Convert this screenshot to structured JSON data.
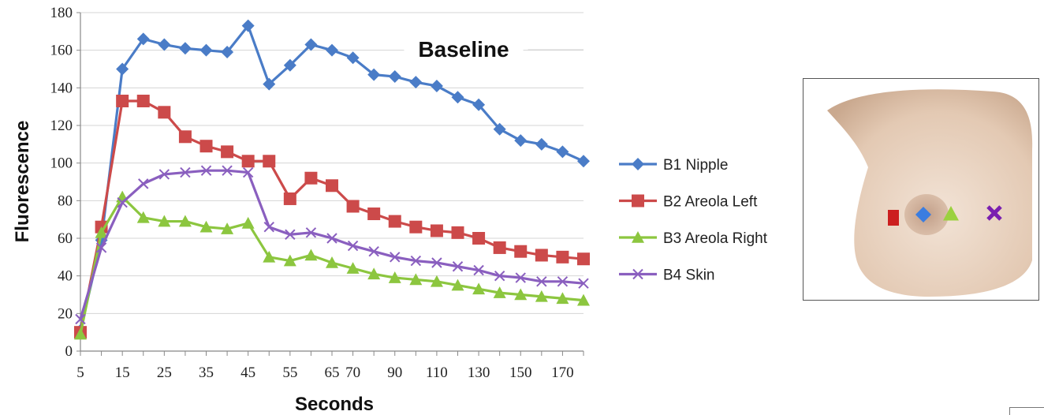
{
  "chart_data": {
    "type": "line",
    "title": "Baseline",
    "xlabel": "Seconds",
    "ylabel": "Fluorescence",
    "ylim": [
      0,
      180
    ],
    "yticks": [
      0,
      20,
      40,
      60,
      80,
      100,
      120,
      140,
      160,
      180
    ],
    "x": [
      5,
      10,
      15,
      20,
      25,
      30,
      35,
      40,
      45,
      50,
      55,
      60,
      65,
      70,
      80,
      90,
      100,
      110,
      120,
      130,
      140,
      150,
      160,
      170,
      180
    ],
    "xtick_labels": [
      "5",
      "15",
      "25",
      "35",
      "45",
      "55",
      "65",
      "70",
      "90",
      "110",
      "130",
      "150",
      "170"
    ],
    "xtick_label_index": [
      0,
      2,
      4,
      6,
      8,
      10,
      12,
      13,
      15,
      17,
      19,
      21,
      23
    ],
    "grid": true,
    "legend_position": "right",
    "series": [
      {
        "name": "B1 Nipple",
        "color": "#4a7cc7",
        "marker": "diamond",
        "values": [
          11,
          59,
          150,
          166,
          163,
          161,
          160,
          159,
          173,
          142,
          152,
          163,
          160,
          156,
          147,
          146,
          143,
          141,
          135,
          131,
          118,
          112,
          110,
          106,
          101
        ]
      },
      {
        "name": "B2 Areola Left",
        "color": "#cc4a4a",
        "marker": "square",
        "values": [
          10,
          66,
          133,
          133,
          127,
          114,
          109,
          106,
          101,
          101,
          81,
          92,
          88,
          77,
          73,
          69,
          66,
          64,
          63,
          60,
          55,
          53,
          51,
          50,
          49
        ]
      },
      {
        "name": "B3 Areola Right",
        "color": "#8cc63f",
        "marker": "triangle",
        "values": [
          9,
          63,
          82,
          71,
          69,
          69,
          66,
          65,
          68,
          50,
          48,
          51,
          47,
          44,
          41,
          39,
          38,
          37,
          35,
          33,
          31,
          30,
          29,
          28,
          27
        ]
      },
      {
        "name": "B4 Skin",
        "color": "#8a5fbf",
        "marker": "x",
        "values": [
          17,
          55,
          79,
          89,
          94,
          95,
          96,
          96,
          95,
          66,
          62,
          63,
          60,
          56,
          53,
          50,
          48,
          47,
          45,
          43,
          40,
          39,
          37,
          37,
          36
        ]
      }
    ]
  },
  "inset": {
    "markers": [
      {
        "shape": "square",
        "color": "#cc1f1f"
      },
      {
        "shape": "diamond",
        "color": "#3b7de0"
      },
      {
        "shape": "triangle",
        "color": "#9bd13f"
      },
      {
        "shape": "x",
        "color": "#7a1fb0"
      }
    ]
  }
}
